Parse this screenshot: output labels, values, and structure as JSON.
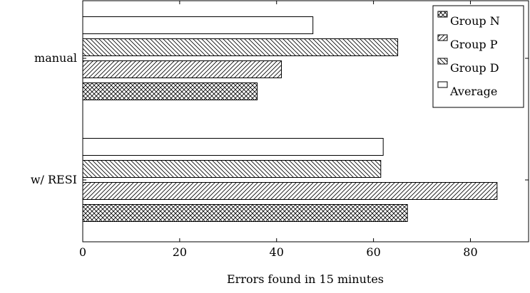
{
  "chart_data": {
    "type": "bar",
    "orientation": "horizontal",
    "categories": [
      "manual",
      "w/ RESI"
    ],
    "series": [
      {
        "name": "Group N",
        "values": [
          36,
          67
        ],
        "pattern": "crosshatch"
      },
      {
        "name": "Group P",
        "values": [
          41,
          85.5
        ],
        "pattern": "north-east-lines"
      },
      {
        "name": "Group D",
        "values": [
          65,
          61.5
        ],
        "pattern": "north-west-lines"
      },
      {
        "name": "Average",
        "values": [
          47.5,
          62
        ],
        "pattern": "none"
      }
    ],
    "xlabel": "Errors found in 15 minutes",
    "ylabel": "",
    "xlim": [
      0,
      92
    ],
    "xticks": [
      0,
      20,
      40,
      60,
      80
    ],
    "grid": false,
    "legend_position": "top-right"
  }
}
